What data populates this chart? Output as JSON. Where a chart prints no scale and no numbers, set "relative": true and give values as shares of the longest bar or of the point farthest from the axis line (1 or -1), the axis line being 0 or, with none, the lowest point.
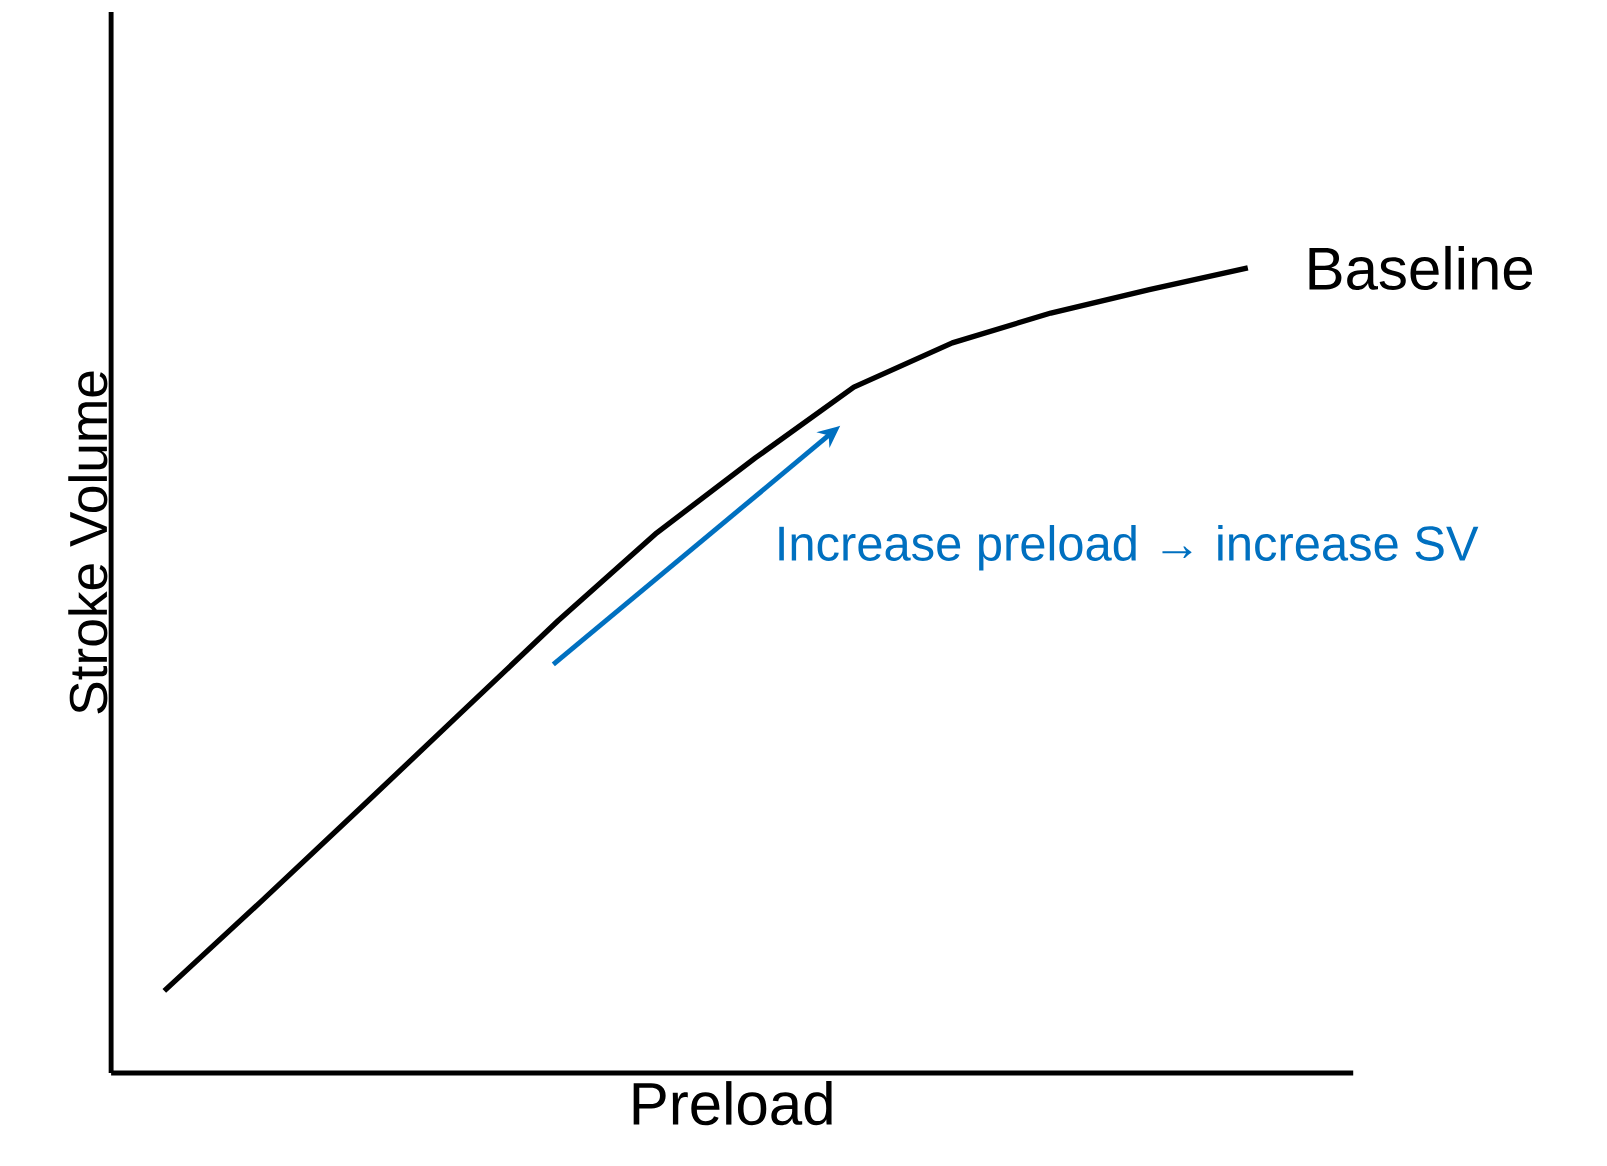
{
  "chart_data": {
    "type": "line",
    "relative": true,
    "xlabel": "Preload",
    "ylabel": "Stroke Volume",
    "categories": [
      null,
      null,
      null,
      null,
      null,
      null,
      null,
      null,
      null,
      null,
      null,
      null
    ],
    "series": [
      {
        "name": "Baseline",
        "color": "#000000",
        "values": [
          0.102,
          0.215,
          0.33,
          0.446,
          0.562,
          0.671,
          0.764,
          0.852,
          0.907,
          0.944,
          0.973,
          1.0
        ]
      }
    ],
    "annotations": [
      "Increase preload → increase SV"
    ]
  }
}
